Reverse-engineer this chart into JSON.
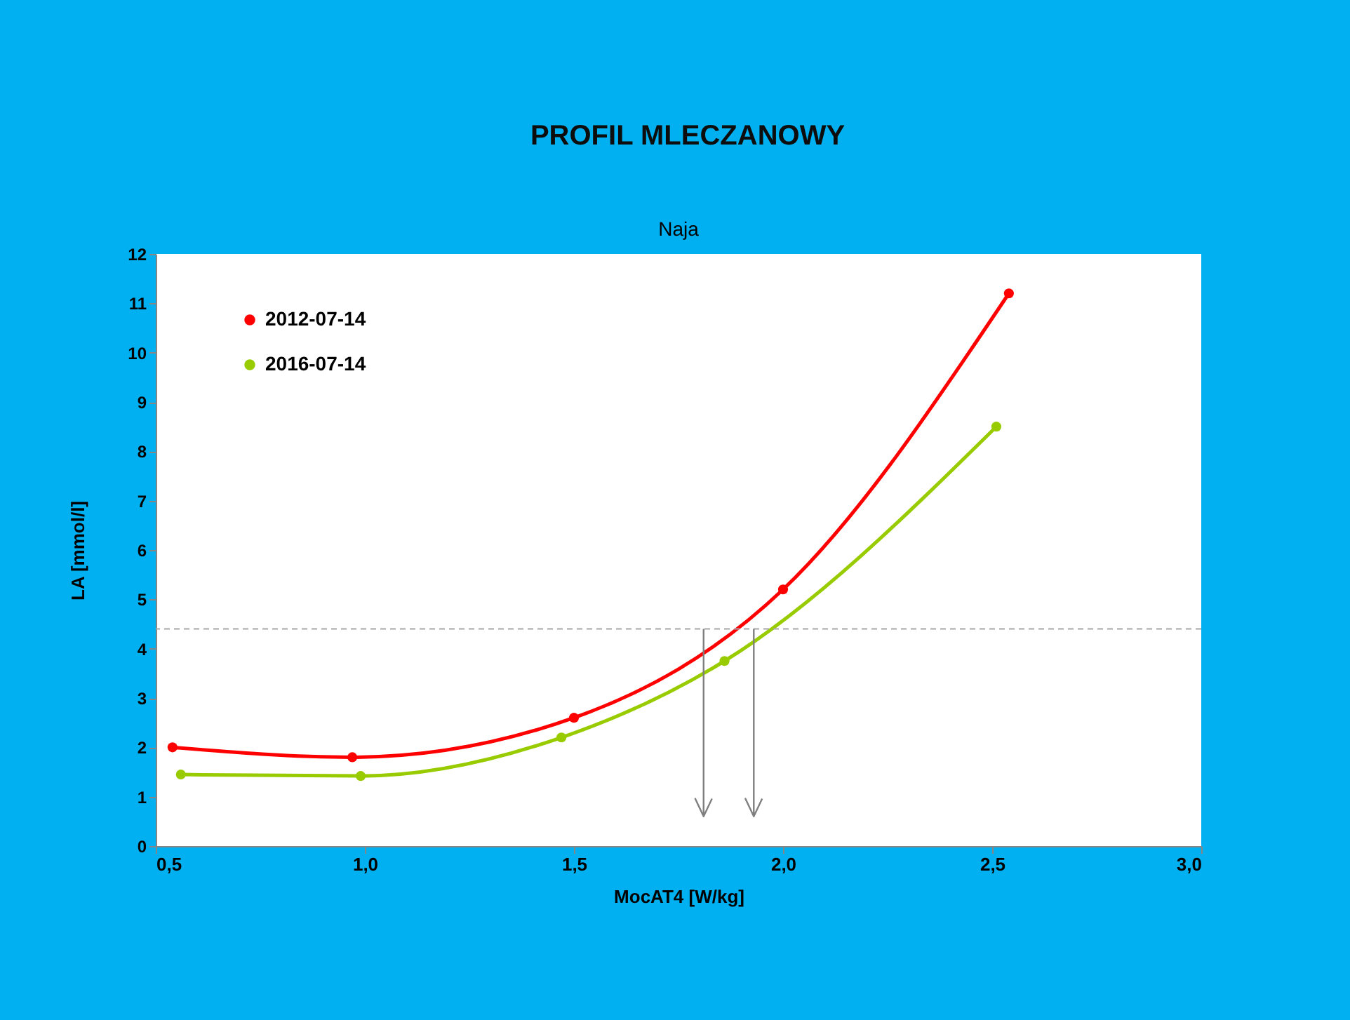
{
  "chart_data": {
    "type": "line",
    "title": "PROFIL MLECZANOWY",
    "subtitle": "Naja",
    "xlabel": "MocAT4 [W/kg]",
    "ylabel": "LA [mmol/l]",
    "xlim": [
      0.5,
      3.0
    ],
    "xticks": [
      {
        "value": 0.5,
        "label": "0,5"
      },
      {
        "value": 1.0,
        "label": "1,0"
      },
      {
        "value": 1.5,
        "label": "1,5"
      },
      {
        "value": 2.0,
        "label": "2,0"
      },
      {
        "value": 2.5,
        "label": "2,5"
      },
      {
        "value": 3.0,
        "label": "3,0"
      }
    ],
    "ylim": [
      0,
      12
    ],
    "yticks": [
      0,
      1,
      2,
      3,
      4,
      5,
      6,
      7,
      8,
      9,
      10,
      11,
      12
    ],
    "series": [
      {
        "name": "2012-07-14",
        "color": "#ff0000",
        "x": [
          0.54,
          0.97,
          1.5,
          2.0,
          2.54
        ],
        "values": [
          2.0,
          1.8,
          2.6,
          5.2,
          11.2
        ]
      },
      {
        "name": "2016-07-14",
        "color": "#99cc00",
        "x": [
          0.56,
          0.99,
          1.47,
          1.86,
          2.51
        ],
        "values": [
          1.45,
          1.42,
          2.2,
          3.75,
          8.5
        ]
      }
    ],
    "ref_lines": [
      {
        "axis": "y",
        "value": 4.4,
        "color": "#a6a6a6",
        "line_style": "dashed"
      },
      {
        "axis": "x",
        "value": 1.81,
        "color": "#7f7f7f"
      },
      {
        "axis": "x",
        "value": 1.93,
        "color": "#7f7f7f"
      }
    ],
    "marker": "circle",
    "line_style": "solid",
    "grid": false,
    "legend": "top left"
  }
}
